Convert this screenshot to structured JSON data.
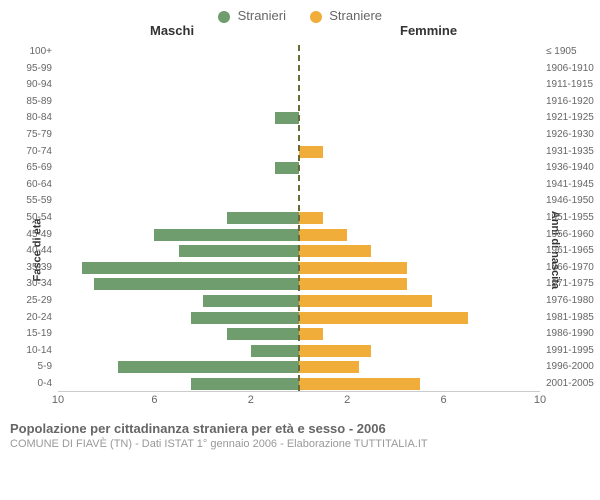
{
  "legend": {
    "male": {
      "label": "Stranieri",
      "color": "#6f9d6d"
    },
    "female": {
      "label": "Straniere",
      "color": "#f0ad3a"
    }
  },
  "headers": {
    "left": "Maschi",
    "right": "Femmine"
  },
  "axes": {
    "left_title": "Fasce di età",
    "right_title": "Anni di nascita",
    "x_max": 10,
    "x_ticks_left": [
      10,
      6,
      2
    ],
    "x_ticks_right": [
      2,
      6,
      10
    ],
    "centerline_color": "#6b6b3a"
  },
  "colors": {
    "male_bar": "#6f9d6d",
    "female_bar": "#f0ad3a"
  },
  "rows": [
    {
      "age": "100+",
      "birth": "≤ 1905",
      "m": 0,
      "f": 0
    },
    {
      "age": "95-99",
      "birth": "1906-1910",
      "m": 0,
      "f": 0
    },
    {
      "age": "90-94",
      "birth": "1911-1915",
      "m": 0,
      "f": 0
    },
    {
      "age": "85-89",
      "birth": "1916-1920",
      "m": 0,
      "f": 0
    },
    {
      "age": "80-84",
      "birth": "1921-1925",
      "m": 1.0,
      "f": 0
    },
    {
      "age": "75-79",
      "birth": "1926-1930",
      "m": 0,
      "f": 0
    },
    {
      "age": "70-74",
      "birth": "1931-1935",
      "m": 0,
      "f": 1.0
    },
    {
      "age": "65-69",
      "birth": "1936-1940",
      "m": 1.0,
      "f": 0
    },
    {
      "age": "60-64",
      "birth": "1941-1945",
      "m": 0,
      "f": 0
    },
    {
      "age": "55-59",
      "birth": "1946-1950",
      "m": 0,
      "f": 0
    },
    {
      "age": "50-54",
      "birth": "1951-1955",
      "m": 3.0,
      "f": 1.0
    },
    {
      "age": "45-49",
      "birth": "1956-1960",
      "m": 6.0,
      "f": 2.0
    },
    {
      "age": "40-44",
      "birth": "1961-1965",
      "m": 5.0,
      "f": 3.0
    },
    {
      "age": "35-39",
      "birth": "1966-1970",
      "m": 9.0,
      "f": 4.5
    },
    {
      "age": "30-34",
      "birth": "1971-1975",
      "m": 8.5,
      "f": 4.5
    },
    {
      "age": "25-29",
      "birth": "1976-1980",
      "m": 4.0,
      "f": 5.5
    },
    {
      "age": "20-24",
      "birth": "1981-1985",
      "m": 4.5,
      "f": 7.0
    },
    {
      "age": "15-19",
      "birth": "1986-1990",
      "m": 3.0,
      "f": 1.0
    },
    {
      "age": "10-14",
      "birth": "1991-1995",
      "m": 2.0,
      "f": 3.0
    },
    {
      "age": "5-9",
      "birth": "1996-2000",
      "m": 7.5,
      "f": 2.5
    },
    {
      "age": "0-4",
      "birth": "2001-2005",
      "m": 4.5,
      "f": 5.0
    }
  ],
  "caption": {
    "title": "Popolazione per cittadinanza straniera per età e sesso - 2006",
    "subtitle": "COMUNE DI FIAVÈ (TN) - Dati ISTAT 1° gennaio 2006 - Elaborazione TUTTITALIA.IT"
  }
}
